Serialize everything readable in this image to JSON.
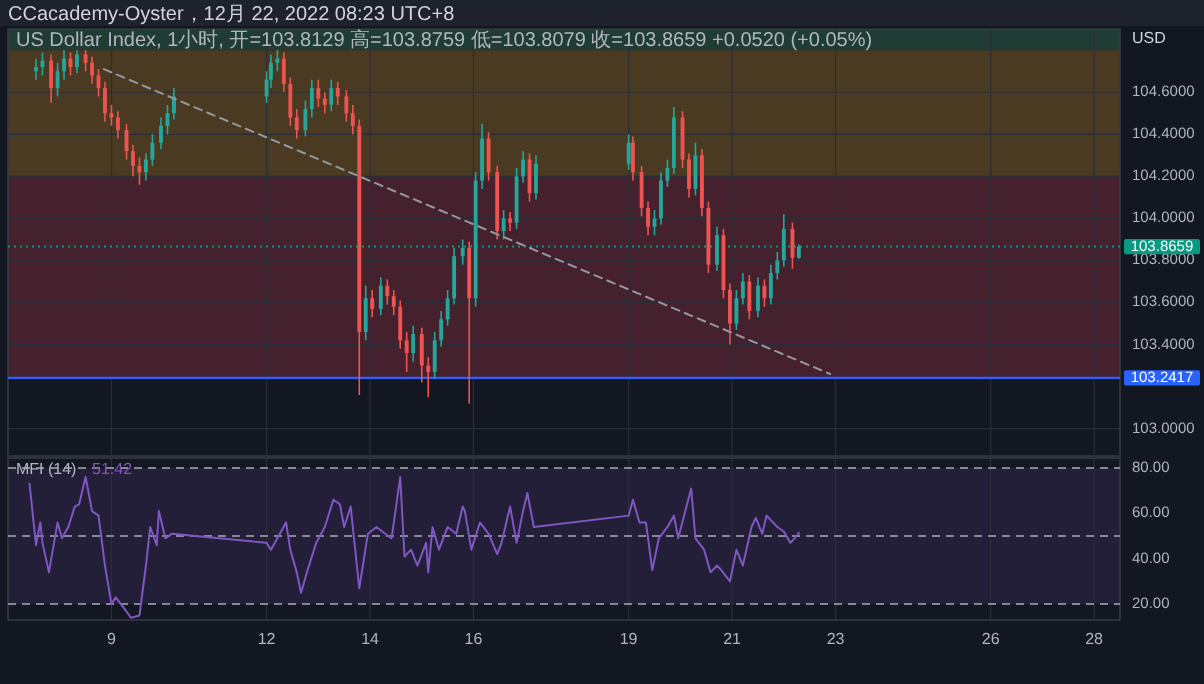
{
  "chart_data": [
    {
      "type": "candlestick",
      "title": "CCacademy-Oyster，12月 22, 2022 08:23 UTC+8",
      "subtitle": "US Dollar Index, 1小时, 开=103.8129 高=103.8759 低=103.8079 收=103.8659 +0.0520 (+0.05%)",
      "ylabel": "USD",
      "x": [
        "2022-12-07T13:00",
        "2022-12-07T16:00",
        "2022-12-07T20:00",
        "2022-12-07T23:00",
        "2022-12-08T02:00",
        "2022-12-08T05:00",
        "2022-12-08T08:00",
        "2022-12-08T12:00",
        "2022-12-08T15:00",
        "2022-12-08T18:00",
        "2022-12-08T21:00",
        "2022-12-09T00:00",
        "2022-12-09T03:00",
        "2022-12-09T07:00",
        "2022-12-09T10:00",
        "2022-12-09T13:00",
        "2022-12-09T16:00",
        "2022-12-09T19:00",
        "2022-12-09T23:00",
        "2022-12-10T02:00",
        "2022-12-10T05:00",
        "2022-12-12T00:00",
        "2022-12-12T02:00",
        "2022-12-12T05:00",
        "2022-12-12T08:00",
        "2022-12-12T11:00",
        "2022-12-12T14:00",
        "2022-12-12T18:00",
        "2022-12-12T21:00",
        "2022-12-13T00:00",
        "2022-12-13T03:00",
        "2022-12-13T06:00",
        "2022-12-13T09:00",
        "2022-12-13T13:00",
        "2022-12-13T16:00",
        "2022-12-13T19:00",
        "2022-12-13T22:00",
        "2022-12-14T01:00",
        "2022-12-14T05:00",
        "2022-12-14T08:00",
        "2022-12-14T11:00",
        "2022-12-14T14:00",
        "2022-12-14T17:00",
        "2022-12-14T20:00",
        "2022-12-15T00:00",
        "2022-12-15T03:00",
        "2022-12-15T06:00",
        "2022-12-15T09:00",
        "2022-12-15T12:00",
        "2022-12-15T15:00",
        "2022-12-15T19:00",
        "2022-12-15T22:00",
        "2022-12-16T01:00",
        "2022-12-16T04:00",
        "2022-12-16T07:00",
        "2022-12-16T11:00",
        "2022-12-16T14:00",
        "2022-12-16T17:00",
        "2022-12-16T20:00",
        "2022-12-16T23:00",
        "2022-12-17T02:00",
        "2022-12-17T05:00",
        "2022-12-19T00:00",
        "2022-12-19T02:00",
        "2022-12-19T06:00",
        "2022-12-19T09:00",
        "2022-12-19T12:00",
        "2022-12-19T15:00",
        "2022-12-19T18:00",
        "2022-12-19T21:00",
        "2022-12-20T01:00",
        "2022-12-20T04:00",
        "2022-12-20T07:00",
        "2022-12-20T10:00",
        "2022-12-20T13:00",
        "2022-12-20T17:00",
        "2022-12-20T20:00",
        "2022-12-20T23:00",
        "2022-12-21T02:00",
        "2022-12-21T05:00",
        "2022-12-21T08:00",
        "2022-12-21T12:00",
        "2022-12-21T15:00",
        "2022-12-21T18:00",
        "2022-12-21T21:00",
        "2022-12-22T00:00",
        "2022-12-22T04:00",
        "2022-12-22T07:00"
      ],
      "ohlc": [
        [
          104.7,
          104.76,
          104.66,
          104.72
        ],
        [
          104.72,
          104.79,
          104.68,
          104.75
        ],
        [
          104.75,
          104.78,
          104.55,
          104.62
        ],
        [
          104.62,
          104.74,
          104.58,
          104.7
        ],
        [
          104.7,
          104.8,
          104.66,
          104.76
        ],
        [
          104.76,
          104.79,
          104.68,
          104.72
        ],
        [
          104.72,
          104.8,
          104.69,
          104.78
        ],
        [
          104.78,
          104.8,
          104.7,
          104.74
        ],
        [
          104.74,
          104.77,
          104.64,
          104.68
        ],
        [
          104.68,
          104.71,
          104.58,
          104.62
        ],
        [
          104.62,
          104.65,
          104.46,
          104.5
        ],
        [
          104.5,
          104.54,
          104.44,
          104.48
        ],
        [
          104.48,
          104.51,
          104.38,
          104.42
        ],
        [
          104.42,
          104.45,
          104.28,
          104.32
        ],
        [
          104.32,
          104.35,
          104.2,
          104.25
        ],
        [
          104.25,
          104.29,
          104.16,
          104.22
        ],
        [
          104.22,
          104.31,
          104.18,
          104.28
        ],
        [
          104.28,
          104.4,
          104.25,
          104.36
        ],
        [
          104.36,
          104.48,
          104.33,
          104.44
        ],
        [
          104.44,
          104.54,
          104.4,
          104.5
        ],
        [
          104.5,
          104.62,
          104.47,
          104.58
        ],
        [
          104.58,
          104.7,
          104.55,
          104.66
        ],
        [
          104.66,
          104.78,
          104.62,
          104.74
        ],
        [
          104.74,
          104.8,
          104.7,
          104.76
        ],
        [
          104.76,
          104.79,
          104.6,
          104.64
        ],
        [
          104.64,
          104.67,
          104.44,
          104.48
        ],
        [
          104.48,
          104.52,
          104.38,
          104.42
        ],
        [
          104.42,
          104.56,
          104.39,
          104.52
        ],
        [
          104.52,
          104.66,
          104.48,
          104.62
        ],
        [
          104.62,
          104.66,
          104.53,
          104.57
        ],
        [
          104.57,
          104.6,
          104.5,
          104.54
        ],
        [
          104.54,
          104.66,
          104.51,
          104.62
        ],
        [
          104.62,
          104.65,
          104.54,
          104.58
        ],
        [
          104.58,
          104.61,
          104.46,
          104.5
        ],
        [
          104.5,
          104.54,
          104.4,
          104.44
        ],
        [
          104.44,
          104.47,
          103.16,
          103.46
        ],
        [
          103.46,
          103.68,
          103.42,
          103.62
        ],
        [
          103.62,
          103.66,
          103.53,
          103.57
        ],
        [
          103.57,
          103.72,
          103.54,
          103.68
        ],
        [
          103.68,
          103.71,
          103.59,
          103.63
        ],
        [
          103.63,
          103.66,
          103.54,
          103.58
        ],
        [
          103.58,
          103.61,
          103.38,
          103.42
        ],
        [
          103.42,
          103.46,
          103.27,
          103.36
        ],
        [
          103.36,
          103.49,
          103.32,
          103.45
        ],
        [
          103.45,
          103.48,
          103.22,
          103.3
        ],
        [
          103.3,
          103.34,
          103.15,
          103.27
        ],
        [
          103.27,
          103.46,
          103.24,
          103.42
        ],
        [
          103.42,
          103.56,
          103.39,
          103.52
        ],
        [
          103.52,
          103.66,
          103.49,
          103.62
        ],
        [
          103.62,
          103.86,
          103.59,
          103.82
        ],
        [
          103.82,
          103.9,
          103.78,
          103.86
        ],
        [
          103.86,
          103.89,
          103.12,
          103.62
        ],
        [
          103.62,
          104.22,
          103.58,
          104.18
        ],
        [
          104.18,
          104.45,
          104.14,
          104.38
        ],
        [
          104.38,
          104.41,
          104.18,
          104.22
        ],
        [
          104.22,
          104.25,
          103.9,
          103.94
        ],
        [
          103.94,
          104.04,
          103.9,
          104.0
        ],
        [
          104.0,
          104.03,
          103.94,
          103.98
        ],
        [
          103.98,
          104.24,
          103.95,
          104.2
        ],
        [
          104.2,
          104.32,
          104.17,
          104.28
        ],
        [
          104.28,
          104.31,
          104.08,
          104.12
        ],
        [
          104.12,
          104.3,
          104.09,
          104.26
        ],
        [
          104.26,
          104.4,
          104.23,
          104.36
        ],
        [
          104.36,
          104.39,
          104.18,
          104.22
        ],
        [
          104.22,
          104.25,
          104.01,
          104.05
        ],
        [
          104.05,
          104.08,
          103.92,
          103.96
        ],
        [
          103.96,
          104.04,
          103.92,
          104.0
        ],
        [
          104.0,
          104.22,
          103.97,
          104.18
        ],
        [
          104.18,
          104.28,
          104.15,
          104.24
        ],
        [
          104.24,
          104.53,
          104.21,
          104.48
        ],
        [
          104.48,
          104.51,
          104.24,
          104.28
        ],
        [
          104.28,
          104.31,
          104.1,
          104.14
        ],
        [
          104.14,
          104.36,
          104.11,
          104.3
        ],
        [
          104.3,
          104.33,
          104.01,
          104.05
        ],
        [
          104.05,
          104.08,
          103.74,
          103.78
        ],
        [
          103.78,
          103.96,
          103.75,
          103.92
        ],
        [
          103.92,
          103.95,
          103.62,
          103.66
        ],
        [
          103.66,
          103.69,
          103.4,
          103.5
        ],
        [
          103.5,
          103.66,
          103.47,
          103.62
        ],
        [
          103.62,
          103.74,
          103.59,
          103.7
        ],
        [
          103.7,
          103.73,
          103.52,
          103.56
        ],
        [
          103.56,
          103.72,
          103.53,
          103.68
        ],
        [
          103.68,
          103.71,
          103.58,
          103.62
        ],
        [
          103.62,
          103.78,
          103.59,
          103.74
        ],
        [
          103.74,
          103.84,
          103.71,
          103.8
        ],
        [
          103.8,
          104.02,
          103.77,
          103.95
        ],
        [
          103.95,
          103.98,
          103.76,
          103.8129
        ],
        [
          103.8129,
          103.8759,
          103.8079,
          103.8659
        ]
      ],
      "series": [
        {
          "type": "line",
          "x": [
            "2022-12-08T20:30",
            "2022-12-22T21:30"
          ],
          "values": [
            104.71,
            103.26
          ],
          "color": "#9598a1",
          "line_style": "dashed"
        }
      ],
      "xlim": [
        "2022-12-07T00:00",
        "2022-12-28T12:00"
      ],
      "xticks": [
        {
          "value": "2022-12-09",
          "label": null
        },
        {
          "value": "2022-12-12",
          "label": null
        },
        {
          "value": "2022-12-14",
          "label": null
        },
        {
          "value": "2022-12-16",
          "label": null
        },
        {
          "value": "2022-12-19",
          "label": null
        },
        {
          "value": "2022-12-21",
          "label": null
        },
        {
          "value": "2022-12-23",
          "label": null
        },
        {
          "value": "2022-12-26",
          "label": null
        },
        {
          "value": "2022-12-28",
          "label": null
        }
      ],
      "ylim": [
        102.87,
        104.9
      ],
      "yticks": [
        {
          "value": 103.0,
          "label": "103.0000"
        },
        {
          "value": 103.4,
          "label": "103.4000"
        },
        {
          "value": 103.6,
          "label": "103.6000"
        },
        {
          "value": 103.8,
          "label": "103.8000"
        },
        {
          "value": 104.0,
          "label": "104.0000"
        },
        {
          "value": 104.2,
          "label": "104.2000"
        },
        {
          "value": 104.4,
          "label": "104.4000"
        },
        {
          "value": 104.6,
          "label": "104.6000"
        }
      ],
      "tick_labels": "y",
      "grid": true,
      "bands": [
        {
          "axis": "y",
          "from": 104.8,
          "to": 104.9,
          "color": "#1f3d34"
        },
        {
          "axis": "y",
          "from": 104.2,
          "to": 104.8,
          "color": "#4a3a21"
        },
        {
          "axis": "y",
          "from": 103.2417,
          "to": 104.2,
          "color": "#45212d"
        }
      ],
      "ref_lines": [
        {
          "axis": "y",
          "value": 103.2417,
          "label": "103.2417",
          "color": "#2962ff"
        },
        {
          "axis": "y",
          "value": 103.8659,
          "label": "103.8659",
          "color": "#089981",
          "line_style": "dotted"
        }
      ]
    },
    {
      "type": "line",
      "title": "MFI (14)",
      "annotations": [
        "51.42"
      ],
      "series": [
        {
          "color": "#7e57c2",
          "x": [
            "2022-12-07T10:00",
            "2022-12-07T13:00",
            "2022-12-07T15:00",
            "2022-12-07T16:00",
            "2022-12-07T19:00",
            "2022-12-07T23:00",
            "2022-12-08T01:00",
            "2022-12-08T04:00",
            "2022-12-08T07:00",
            "2022-12-08T09:00",
            "2022-12-08T12:00",
            "2022-12-08T15:00",
            "2022-12-08T18:00",
            "2022-12-08T21:00",
            "2022-12-09T00:00",
            "2022-12-09T02:00",
            "2022-12-09T06:00",
            "2022-12-09T09:00",
            "2022-12-09T13:00",
            "2022-12-09T16:00",
            "2022-12-09T18:00",
            "2022-12-09T21:00",
            "2022-12-09T22:00",
            "2022-12-10T01:00",
            "2022-12-10T04:00",
            "2022-12-12T00:00",
            "2022-12-12T02:00",
            "2022-12-12T05:00",
            "2022-12-12T09:00",
            "2022-12-12T11:00",
            "2022-12-12T14:00",
            "2022-12-12T16:00",
            "2022-12-12T19:00",
            "2022-12-12T23:00",
            "2022-12-13T03:00",
            "2022-12-13T07:00",
            "2022-12-13T10:00",
            "2022-12-13T12:00",
            "2022-12-13T15:00",
            "2022-12-13T19:00",
            "2022-12-13T23:00",
            "2022-12-14T03:00",
            "2022-12-14T07:00",
            "2022-12-14T10:00",
            "2022-12-14T14:00",
            "2022-12-14T16:00",
            "2022-12-14T19:00",
            "2022-12-14T22:00",
            "2022-12-15T02:00",
            "2022-12-15T03:00",
            "2022-12-15T05:00",
            "2022-12-15T08:00",
            "2022-12-15T12:00",
            "2022-12-15T16:00",
            "2022-12-15T19:00",
            "2022-12-15T20:00",
            "2022-12-15T23:00",
            "2022-12-16T03:00",
            "2022-12-16T07:00",
            "2022-12-16T11:00",
            "2022-12-16T13:00",
            "2022-12-16T17:00",
            "2022-12-16T20:00",
            "2022-12-16T23:00",
            "2022-12-17T01:00",
            "2022-12-17T04:00",
            "2022-12-19T00:00",
            "2022-12-19T02:00",
            "2022-12-19T05:00",
            "2022-12-19T08:00",
            "2022-12-19T11:00",
            "2022-12-19T14:00",
            "2022-12-19T18:00",
            "2022-12-19T21:00",
            "2022-12-19T23:00",
            "2022-12-20T05:00",
            "2022-12-20T07:00",
            "2022-12-20T11:00",
            "2022-12-20T14:00",
            "2022-12-20T17:00",
            "2022-12-20T19:00",
            "2022-12-20T23:00",
            "2022-12-21T02:00",
            "2022-12-21T05:00",
            "2022-12-21T09:00",
            "2022-12-21T11:00",
            "2022-12-21T14:00",
            "2022-12-21T16:00",
            "2022-12-21T21:00",
            "2022-12-22T00:00",
            "2022-12-22T03:00",
            "2022-12-22T05:00",
            "2022-12-22T07:00"
          ],
          "values": [
            73,
            46,
            56,
            47,
            34,
            56,
            49,
            54,
            63,
            64,
            76,
            61,
            59,
            37,
            20,
            23,
            18,
            14,
            15,
            37,
            54,
            46,
            61,
            49,
            51,
            47,
            44,
            49,
            56,
            44,
            34,
            25,
            35,
            47,
            54,
            66,
            64,
            54,
            63,
            27,
            51,
            54,
            51,
            49,
            76,
            41,
            44,
            37,
            47,
            34,
            54,
            44,
            54,
            51,
            63,
            61,
            44,
            56,
            51,
            42,
            47,
            63,
            47,
            61,
            69,
            54,
            59,
            66,
            56,
            56,
            35,
            49,
            54,
            59,
            49,
            71,
            49,
            44,
            34,
            37,
            35,
            30,
            44,
            37,
            54,
            58,
            51,
            59,
            54,
            52,
            47,
            49,
            51.42
          ]
        }
      ],
      "xlim": [
        "2022-12-07T00:00",
        "2022-12-28T12:00"
      ],
      "xticks": [
        {
          "value": "2022-12-09",
          "label": "9"
        },
        {
          "value": "2022-12-12",
          "label": "12"
        },
        {
          "value": "2022-12-14",
          "label": "14"
        },
        {
          "value": "2022-12-16",
          "label": "16"
        },
        {
          "value": "2022-12-19",
          "label": "19"
        },
        {
          "value": "2022-12-21",
          "label": "21"
        },
        {
          "value": "2022-12-23",
          "label": "23"
        },
        {
          "value": "2022-12-26",
          "label": "26"
        },
        {
          "value": "2022-12-28",
          "label": "28"
        }
      ],
      "ylim": [
        13,
        84.4
      ],
      "yticks": [
        {
          "value": 20,
          "label": "20.00"
        },
        {
          "value": 40,
          "label": "40.00"
        },
        {
          "value": 60,
          "label": "60.00"
        },
        {
          "value": 80,
          "label": "80.00"
        }
      ],
      "grid": "x",
      "bands": [
        {
          "axis": "y",
          "from": 20,
          "to": 80,
          "color": "#241f38"
        }
      ],
      "ref_lines": [
        {
          "axis": "y",
          "value": 80,
          "color": "#868993",
          "line_style": "dashed"
        },
        {
          "axis": "y",
          "value": 50,
          "color": "#868993",
          "line_style": "dashed"
        },
        {
          "axis": "y",
          "value": 20,
          "color": "#868993",
          "line_style": "dashed"
        }
      ]
    }
  ]
}
